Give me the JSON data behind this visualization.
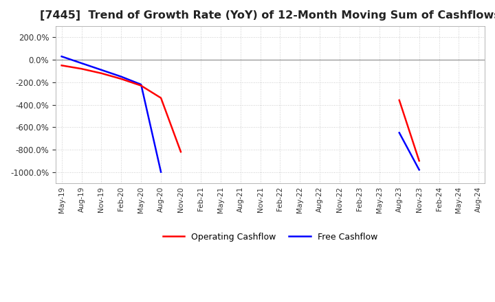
{
  "title": "[7445]  Trend of Growth Rate (YoY) of 12-Month Moving Sum of Cashflows",
  "title_fontsize": 11.5,
  "ylim": [
    -1100,
    300
  ],
  "yticks": [
    200,
    0,
    -200,
    -400,
    -600,
    -800,
    -1000
  ],
  "background_color": "#ffffff",
  "grid_color": "#cccccc",
  "grid_style": "dotted",
  "operating_color": "#ff0000",
  "free_color": "#0000ff",
  "legend_labels": [
    "Operating Cashflow",
    "Free Cashflow"
  ],
  "x_labels": [
    "May-19",
    "Aug-19",
    "Nov-19",
    "Feb-20",
    "May-20",
    "Aug-20",
    "Nov-20",
    "Feb-21",
    "May-21",
    "Aug-21",
    "Nov-21",
    "Feb-22",
    "May-22",
    "Aug-22",
    "Nov-22",
    "Feb-23",
    "May-23",
    "Aug-23",
    "Nov-23",
    "Feb-24",
    "May-24",
    "Aug-24"
  ],
  "operating_cashflow": [
    -50,
    -80,
    -120,
    -170,
    -230,
    -340,
    -820,
    null,
    null,
    null,
    null,
    null,
    null,
    null,
    null,
    null,
    null,
    -360,
    -900,
    null,
    null,
    null
  ],
  "free_cashflow": [
    30,
    -30,
    -90,
    -150,
    -220,
    -1000,
    null,
    null,
    null,
    null,
    null,
    null,
    null,
    null,
    null,
    null,
    null,
    -650,
    -980,
    null,
    null,
    null
  ]
}
